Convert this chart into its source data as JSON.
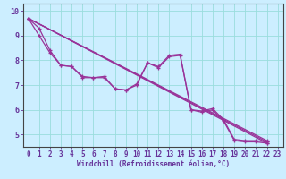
{
  "xlabel": "Windchill (Refroidissement éolien,°C)",
  "bg_color": "#cceeff",
  "line_color": "#993399",
  "grid_color": "#99dddd",
  "axis_color": "#663399",
  "spine_color": "#444444",
  "xlim": [
    -0.5,
    23.5
  ],
  "ylim": [
    4.5,
    10.3
  ],
  "xticks": [
    0,
    1,
    2,
    3,
    4,
    5,
    6,
    7,
    8,
    9,
    10,
    11,
    12,
    13,
    14,
    15,
    16,
    17,
    18,
    19,
    20,
    21,
    22,
    23
  ],
  "yticks": [
    5,
    6,
    7,
    8,
    9,
    10
  ],
  "series_main": [
    [
      0,
      9.7
    ],
    [
      1,
      9.3
    ],
    [
      2,
      8.4
    ],
    [
      3,
      7.8
    ],
    [
      4,
      7.75
    ],
    [
      5,
      7.35
    ],
    [
      6,
      7.3
    ],
    [
      7,
      7.35
    ],
    [
      8,
      6.85
    ],
    [
      9,
      6.8
    ],
    [
      10,
      7.05
    ],
    [
      11,
      7.9
    ],
    [
      12,
      7.75
    ],
    [
      13,
      8.2
    ],
    [
      14,
      8.25
    ],
    [
      15,
      6.0
    ],
    [
      16,
      5.95
    ],
    [
      17,
      6.05
    ],
    [
      18,
      5.6
    ],
    [
      19,
      4.8
    ],
    [
      20,
      4.75
    ],
    [
      21,
      4.75
    ],
    [
      22,
      4.7
    ]
  ],
  "series_extra": [
    [
      [
        0,
        9.7
      ],
      [
        1,
        9.0
      ],
      [
        2,
        8.3
      ],
      [
        3,
        7.8
      ],
      [
        4,
        7.75
      ],
      [
        5,
        7.3
      ],
      [
        6,
        7.3
      ],
      [
        7,
        7.3
      ],
      [
        8,
        6.85
      ],
      [
        9,
        6.8
      ],
      [
        10,
        7.0
      ],
      [
        11,
        7.9
      ],
      [
        12,
        7.7
      ],
      [
        13,
        8.15
      ],
      [
        14,
        8.2
      ],
      [
        15,
        6.0
      ],
      [
        16,
        5.9
      ],
      [
        17,
        6.0
      ],
      [
        18,
        5.55
      ],
      [
        19,
        4.75
      ],
      [
        20,
        4.7
      ],
      [
        21,
        4.7
      ],
      [
        22,
        4.65
      ]
    ],
    [
      [
        0,
        9.7
      ],
      [
        22,
        4.65
      ]
    ],
    [
      [
        0,
        9.7
      ],
      [
        22,
        4.7
      ]
    ],
    [
      [
        0,
        9.7
      ],
      [
        22,
        4.75
      ]
    ]
  ],
  "tick_fontsize": 5.5,
  "xlabel_fontsize": 5.5
}
